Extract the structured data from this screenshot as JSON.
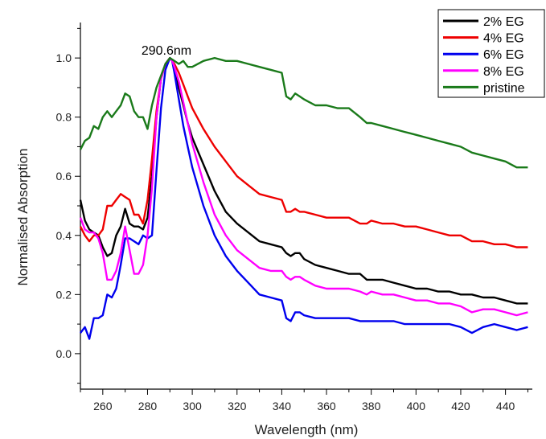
{
  "chart_data": {
    "type": "line",
    "xlabel": "Wavelength (nm)",
    "ylabel": "Normalised Absorption",
    "xlim": [
      250,
      452
    ],
    "ylim": [
      -0.12,
      1.12
    ],
    "xticks": [
      260,
      280,
      300,
      320,
      340,
      360,
      380,
      400,
      420,
      440
    ],
    "yticks": [
      0.0,
      0.2,
      0.4,
      0.6,
      0.8,
      1.0
    ],
    "xtick_labels": [
      "260",
      "280",
      "300",
      "320",
      "340",
      "360",
      "380",
      "400",
      "420",
      "440"
    ],
    "ytick_labels": [
      "0.0",
      "0.2",
      "0.4",
      "0.6",
      "0.8",
      "1.0"
    ],
    "legend_position": "top-right",
    "grid": false,
    "annotations": [
      {
        "text": "290.6nm",
        "x": 290.6,
        "y": 1.0
      }
    ],
    "series": [
      {
        "name": "2% EG",
        "color": "#000000",
        "x": [
          250,
          252,
          254,
          256,
          258,
          260,
          262,
          264,
          266,
          268,
          270,
          272,
          274,
          276,
          278,
          280,
          282,
          284,
          286,
          288,
          290,
          291,
          292,
          294,
          296,
          298,
          300,
          305,
          310,
          315,
          320,
          325,
          330,
          335,
          340,
          342,
          344,
          346,
          348,
          350,
          355,
          360,
          365,
          370,
          375,
          378,
          380,
          385,
          390,
          395,
          400,
          405,
          410,
          415,
          420,
          425,
          430,
          435,
          440,
          445,
          450
        ],
        "y": [
          0.52,
          0.45,
          0.42,
          0.41,
          0.4,
          0.36,
          0.33,
          0.34,
          0.4,
          0.43,
          0.49,
          0.44,
          0.43,
          0.43,
          0.42,
          0.46,
          0.6,
          0.8,
          0.93,
          0.98,
          1.0,
          0.99,
          0.96,
          0.9,
          0.84,
          0.78,
          0.73,
          0.64,
          0.55,
          0.48,
          0.44,
          0.41,
          0.38,
          0.37,
          0.36,
          0.34,
          0.33,
          0.34,
          0.34,
          0.32,
          0.3,
          0.29,
          0.28,
          0.27,
          0.27,
          0.25,
          0.25,
          0.25,
          0.24,
          0.23,
          0.22,
          0.22,
          0.21,
          0.21,
          0.2,
          0.2,
          0.19,
          0.19,
          0.18,
          0.17,
          0.17
        ]
      },
      {
        "name": "4% EG",
        "color": "#ee0000",
        "x": [
          250,
          252,
          254,
          256,
          258,
          260,
          262,
          264,
          266,
          268,
          270,
          272,
          274,
          276,
          278,
          280,
          282,
          284,
          286,
          288,
          290,
          291,
          292,
          294,
          296,
          298,
          300,
          305,
          310,
          315,
          320,
          325,
          330,
          335,
          340,
          342,
          344,
          346,
          348,
          350,
          355,
          360,
          365,
          370,
          375,
          378,
          380,
          385,
          390,
          395,
          400,
          405,
          410,
          415,
          420,
          425,
          430,
          435,
          440,
          445,
          450
        ],
        "y": [
          0.43,
          0.4,
          0.38,
          0.4,
          0.4,
          0.42,
          0.5,
          0.5,
          0.52,
          0.54,
          0.53,
          0.52,
          0.47,
          0.47,
          0.44,
          0.52,
          0.66,
          0.82,
          0.93,
          0.98,
          1.0,
          0.99,
          0.98,
          0.95,
          0.91,
          0.87,
          0.83,
          0.76,
          0.7,
          0.65,
          0.6,
          0.57,
          0.54,
          0.53,
          0.52,
          0.48,
          0.48,
          0.49,
          0.48,
          0.48,
          0.47,
          0.46,
          0.46,
          0.46,
          0.44,
          0.44,
          0.45,
          0.44,
          0.44,
          0.43,
          0.43,
          0.42,
          0.41,
          0.4,
          0.4,
          0.38,
          0.38,
          0.37,
          0.37,
          0.36,
          0.36
        ]
      },
      {
        "name": "6% EG",
        "color": "#0000ee",
        "x": [
          250,
          252,
          254,
          256,
          258,
          260,
          262,
          264,
          266,
          268,
          270,
          272,
          274,
          276,
          278,
          280,
          282,
          284,
          286,
          288,
          290,
          291,
          292,
          294,
          296,
          298,
          300,
          305,
          310,
          315,
          320,
          325,
          330,
          335,
          340,
          342,
          344,
          346,
          348,
          350,
          355,
          360,
          365,
          370,
          375,
          378,
          380,
          385,
          390,
          395,
          400,
          405,
          410,
          415,
          420,
          425,
          430,
          435,
          440,
          445,
          450
        ],
        "y": [
          0.07,
          0.09,
          0.05,
          0.12,
          0.12,
          0.13,
          0.2,
          0.19,
          0.22,
          0.3,
          0.39,
          0.39,
          0.38,
          0.37,
          0.4,
          0.39,
          0.4,
          0.62,
          0.83,
          0.96,
          1.0,
          0.99,
          0.95,
          0.86,
          0.77,
          0.7,
          0.63,
          0.5,
          0.4,
          0.33,
          0.28,
          0.24,
          0.2,
          0.19,
          0.18,
          0.12,
          0.11,
          0.14,
          0.14,
          0.13,
          0.12,
          0.12,
          0.12,
          0.12,
          0.11,
          0.11,
          0.11,
          0.11,
          0.11,
          0.1,
          0.1,
          0.1,
          0.1,
          0.1,
          0.09,
          0.07,
          0.09,
          0.1,
          0.09,
          0.08,
          0.09
        ]
      },
      {
        "name": "8% EG",
        "color": "#ff00ff",
        "x": [
          250,
          252,
          254,
          256,
          258,
          260,
          262,
          264,
          266,
          268,
          270,
          272,
          274,
          276,
          278,
          280,
          282,
          284,
          286,
          288,
          290,
          291,
          292,
          294,
          296,
          298,
          300,
          305,
          310,
          315,
          320,
          325,
          330,
          335,
          340,
          342,
          344,
          346,
          348,
          350,
          355,
          360,
          365,
          370,
          375,
          378,
          380,
          385,
          390,
          395,
          400,
          405,
          410,
          415,
          420,
          425,
          430,
          435,
          440,
          445,
          450
        ],
        "y": [
          0.46,
          0.42,
          0.41,
          0.41,
          0.39,
          0.34,
          0.25,
          0.25,
          0.28,
          0.34,
          0.43,
          0.35,
          0.27,
          0.27,
          0.3,
          0.4,
          0.56,
          0.8,
          0.93,
          0.98,
          1.0,
          0.99,
          0.97,
          0.92,
          0.85,
          0.78,
          0.71,
          0.58,
          0.47,
          0.4,
          0.35,
          0.32,
          0.29,
          0.28,
          0.28,
          0.26,
          0.25,
          0.26,
          0.26,
          0.25,
          0.23,
          0.22,
          0.22,
          0.22,
          0.21,
          0.2,
          0.21,
          0.2,
          0.2,
          0.19,
          0.18,
          0.18,
          0.17,
          0.17,
          0.16,
          0.14,
          0.15,
          0.15,
          0.14,
          0.13,
          0.14
        ]
      },
      {
        "name": "pristine",
        "color": "#1a7a1a",
        "x": [
          250,
          252,
          254,
          256,
          258,
          260,
          262,
          264,
          266,
          268,
          270,
          272,
          274,
          276,
          278,
          280,
          282,
          284,
          286,
          288,
          290,
          292,
          294,
          296,
          298,
          300,
          305,
          310,
          315,
          320,
          325,
          330,
          335,
          340,
          342,
          344,
          346,
          348,
          350,
          355,
          360,
          365,
          370,
          375,
          378,
          380,
          385,
          390,
          395,
          400,
          405,
          410,
          415,
          420,
          425,
          430,
          435,
          440,
          445,
          450
        ],
        "y": [
          0.69,
          0.72,
          0.73,
          0.77,
          0.76,
          0.8,
          0.82,
          0.8,
          0.82,
          0.84,
          0.88,
          0.87,
          0.82,
          0.8,
          0.8,
          0.76,
          0.84,
          0.9,
          0.94,
          0.98,
          1.0,
          0.99,
          0.98,
          0.99,
          0.97,
          0.97,
          0.99,
          1.0,
          0.99,
          0.99,
          0.98,
          0.97,
          0.96,
          0.95,
          0.87,
          0.86,
          0.88,
          0.87,
          0.86,
          0.84,
          0.84,
          0.83,
          0.83,
          0.8,
          0.78,
          0.78,
          0.77,
          0.76,
          0.75,
          0.74,
          0.73,
          0.72,
          0.71,
          0.7,
          0.68,
          0.67,
          0.66,
          0.65,
          0.63,
          0.63
        ]
      }
    ]
  }
}
